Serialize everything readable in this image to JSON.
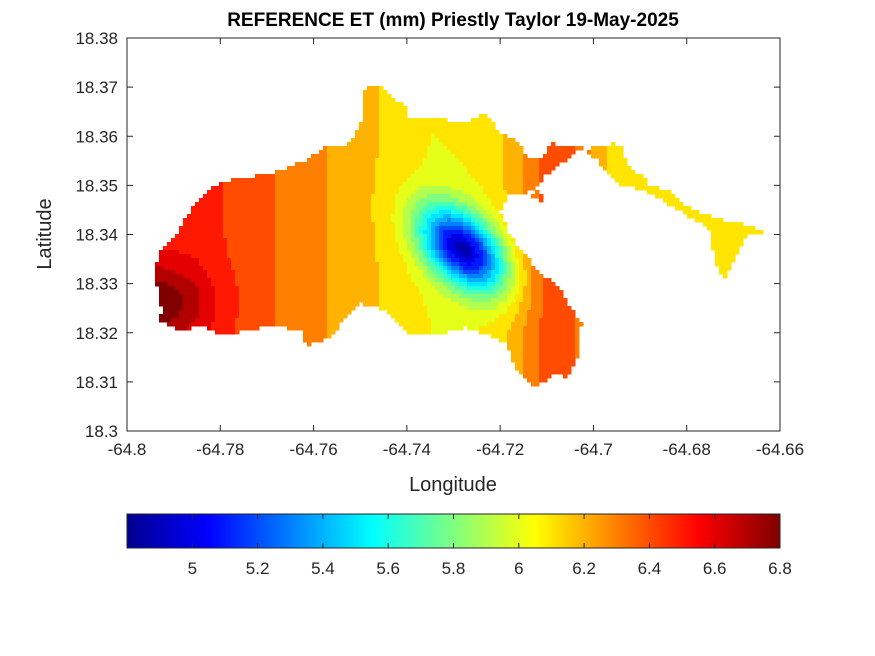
{
  "chart_data": {
    "type": "heatmap",
    "title": "REFERENCE ET (mm) Priestly Taylor 19-May-2025",
    "xlabel": "Longitude",
    "ylabel": "Latitude",
    "xlim": [
      -64.8,
      -64.66
    ],
    "ylim": [
      18.3,
      18.38
    ],
    "x_ticks": [
      "-64.8",
      "-64.78",
      "-64.76",
      "-64.74",
      "-64.72",
      "-64.7",
      "-64.68",
      "-64.66"
    ],
    "y_ticks": [
      "18.3",
      "18.31",
      "18.32",
      "18.33",
      "18.34",
      "18.35",
      "18.36",
      "18.37",
      "18.38"
    ],
    "colorbar": {
      "colormap": "jet",
      "range": [
        4.8,
        6.8
      ],
      "ticks": [
        "5",
        "5.2",
        "5.4",
        "5.6",
        "5.8",
        "6",
        "6.2",
        "6.4",
        "6.6",
        "6.8"
      ],
      "placement": "bottom"
    },
    "grid": false,
    "field_summary": {
      "min_value": 4.9,
      "max_value": 6.8,
      "min_location": {
        "lon": -64.728,
        "lat": 18.337
      },
      "high_region": "western part of the island (-64.795, 18.326)"
    }
  }
}
